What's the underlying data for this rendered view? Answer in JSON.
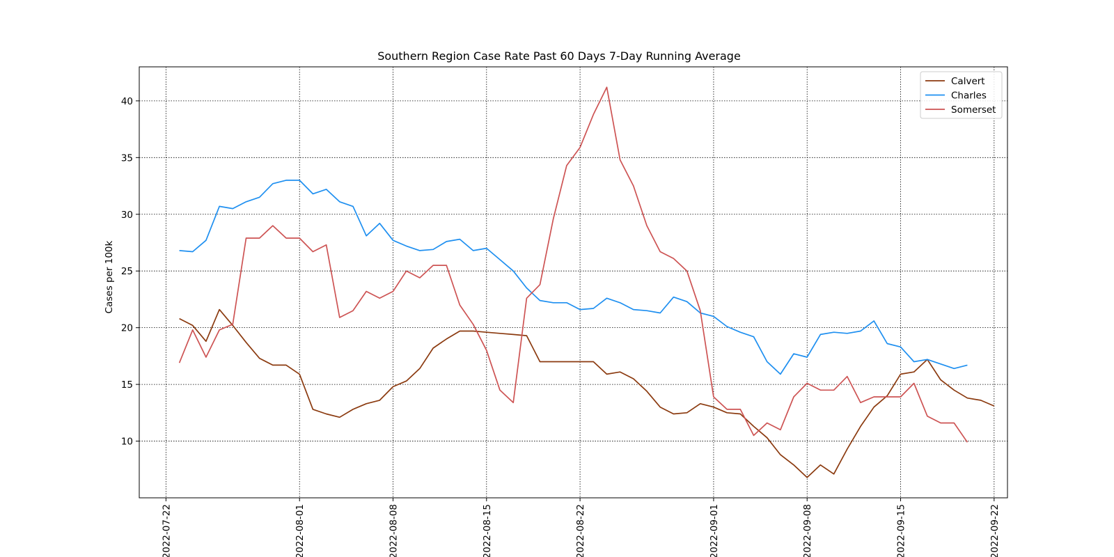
{
  "chart_data": {
    "type": "line",
    "title": "Southern Region Case Rate  Past 60 Days 7-Day Running Average",
    "ylabel": "Cases per 100k",
    "xlabel": "",
    "ylim": [
      5,
      43
    ],
    "xlim": [
      "2022-07-20",
      "2022-09-23"
    ],
    "x_ticks": [
      "2022-07-22",
      "2022-08-01",
      "2022-08-08",
      "2022-08-15",
      "2022-08-22",
      "2022-09-01",
      "2022-09-08",
      "2022-09-15",
      "2022-09-22"
    ],
    "y_ticks": [
      10,
      15,
      20,
      25,
      30,
      35,
      40
    ],
    "grid": true,
    "legend_position": "top-right",
    "x_start": "2022-07-23",
    "series": [
      {
        "name": "Calvert",
        "color": "#8b3a0f",
        "values": [
          20.8,
          20.2,
          18.8,
          21.6,
          20.2,
          18.7,
          17.3,
          16.7,
          16.7,
          15.9,
          12.8,
          12.4,
          12.1,
          12.8,
          13.3,
          13.6,
          14.8,
          15.3,
          16.4,
          18.2,
          19.0,
          19.7,
          19.7,
          19.6,
          19.5,
          19.4,
          19.3,
          17.0,
          17.0,
          17.0,
          17.0,
          17.0,
          15.9,
          16.1,
          15.5,
          14.4,
          13.0,
          12.4,
          12.5,
          13.3,
          13.0,
          12.5,
          12.4,
          11.3,
          10.3,
          8.8,
          7.9,
          6.8,
          7.9,
          7.1,
          9.3,
          11.3,
          13.0,
          14.0,
          15.9,
          16.1,
          17.2,
          15.4,
          14.5,
          13.8,
          13.6,
          13.1
        ]
      },
      {
        "name": "Charles",
        "color": "#1e8ff0",
        "values": [
          26.8,
          26.7,
          27.7,
          30.7,
          30.5,
          31.1,
          31.5,
          32.7,
          33.0,
          33.0,
          31.8,
          32.2,
          31.1,
          30.7,
          28.1,
          29.2,
          27.7,
          27.2,
          26.8,
          26.9,
          27.6,
          27.8,
          26.8,
          27.0,
          26.0,
          25.0,
          23.5,
          22.4,
          22.2,
          22.2,
          21.6,
          21.7,
          22.6,
          22.2,
          21.6,
          21.5,
          21.3,
          22.7,
          22.3,
          21.3,
          21.0,
          20.1,
          19.6,
          19.2,
          17.0,
          15.9,
          17.7,
          17.4,
          19.4,
          19.6,
          19.5,
          19.7,
          20.6,
          18.6,
          18.3,
          17.0,
          17.2,
          16.8,
          16.4,
          16.7
        ]
      },
      {
        "name": "Somerset",
        "color": "#cd5353",
        "values": [
          16.9,
          19.8,
          17.4,
          19.8,
          20.3,
          27.9,
          27.9,
          29.0,
          27.9,
          27.9,
          26.7,
          27.3,
          20.9,
          21.5,
          23.2,
          22.6,
          23.2,
          25.0,
          24.4,
          25.5,
          25.5,
          22.0,
          20.3,
          18.0,
          14.5,
          13.4,
          22.6,
          23.8,
          29.6,
          34.3,
          35.9,
          38.8,
          41.2,
          34.8,
          32.5,
          29.0,
          26.7,
          26.1,
          25.0,
          21.5,
          13.9,
          12.8,
          12.8,
          10.5,
          11.6,
          11.0,
          13.9,
          15.1,
          14.5,
          14.5,
          15.7,
          13.4,
          13.9,
          13.9,
          13.9,
          15.1,
          12.2,
          11.6,
          11.6,
          9.9
        ]
      }
    ]
  }
}
